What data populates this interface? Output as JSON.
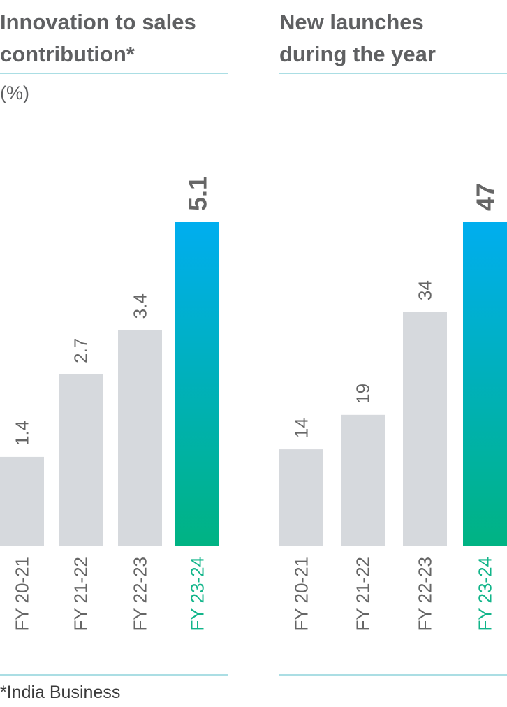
{
  "colors": {
    "bar": "#d6d9dd",
    "highlight_top": "#00aeef",
    "highlight_bottom": "#00b383",
    "highlight_value": "#00aeef",
    "highlight_label": "#12b58a",
    "rule": "#8fd3dc"
  },
  "footnote": "*India Business",
  "chart_data": [
    {
      "type": "bar",
      "title_lines": [
        "Innovation to sales",
        "contribution*"
      ],
      "unit": "(%)",
      "categories": [
        "FY 20-21",
        "FY 21-22",
        "FY 22-23",
        "FY 23-24"
      ],
      "values": [
        1.4,
        2.7,
        3.4,
        5.1
      ],
      "value_labels": [
        "1.4",
        "2.7",
        "3.4",
        "5.1"
      ],
      "highlight_index": 3
    },
    {
      "type": "bar",
      "title_lines": [
        "New launches",
        "during the year"
      ],
      "unit": "",
      "categories": [
        "FY 20-21",
        "FY 21-22",
        "FY 22-23",
        "FY 23-24"
      ],
      "values": [
        14,
        19,
        34,
        47
      ],
      "value_labels": [
        "14",
        "19",
        "34",
        "47"
      ],
      "highlight_index": 3
    }
  ]
}
